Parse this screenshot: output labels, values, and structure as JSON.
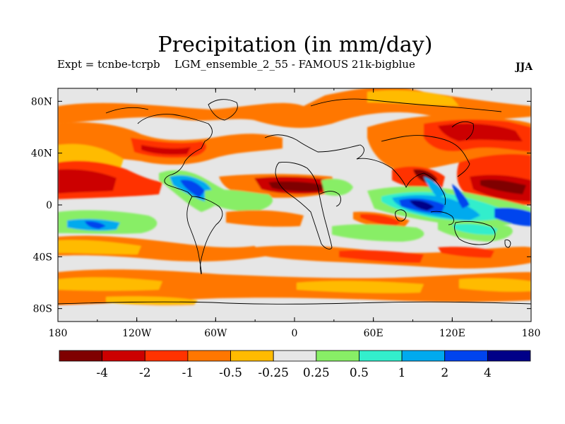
{
  "title": "Precipitation (in mm/day)",
  "subtitle_left": "Expt = tcnbe-tcrpb",
  "subtitle_center": "LGM_ensemble_2_55 - FAMOUS 21k-bigblue",
  "season": "JJA",
  "x_ticks": [
    "180",
    "120W",
    "60W",
    "0",
    "60E",
    "120E",
    "180"
  ],
  "y_ticks": [
    "80N",
    "40N",
    "0",
    "40S",
    "80S"
  ],
  "colorbar": {
    "colors": [
      "#7f0000",
      "#cc0000",
      "#ff3300",
      "#ff7700",
      "#ffbb00",
      "#e6e6e6",
      "#88ee66",
      "#33eecc",
      "#00aaee",
      "#0044ee",
      "#000088"
    ],
    "labels": [
      "-4",
      "-2",
      "-1",
      "-0.5",
      "-0.25",
      "0.25",
      "0.5",
      "1",
      "2",
      "4"
    ]
  }
}
